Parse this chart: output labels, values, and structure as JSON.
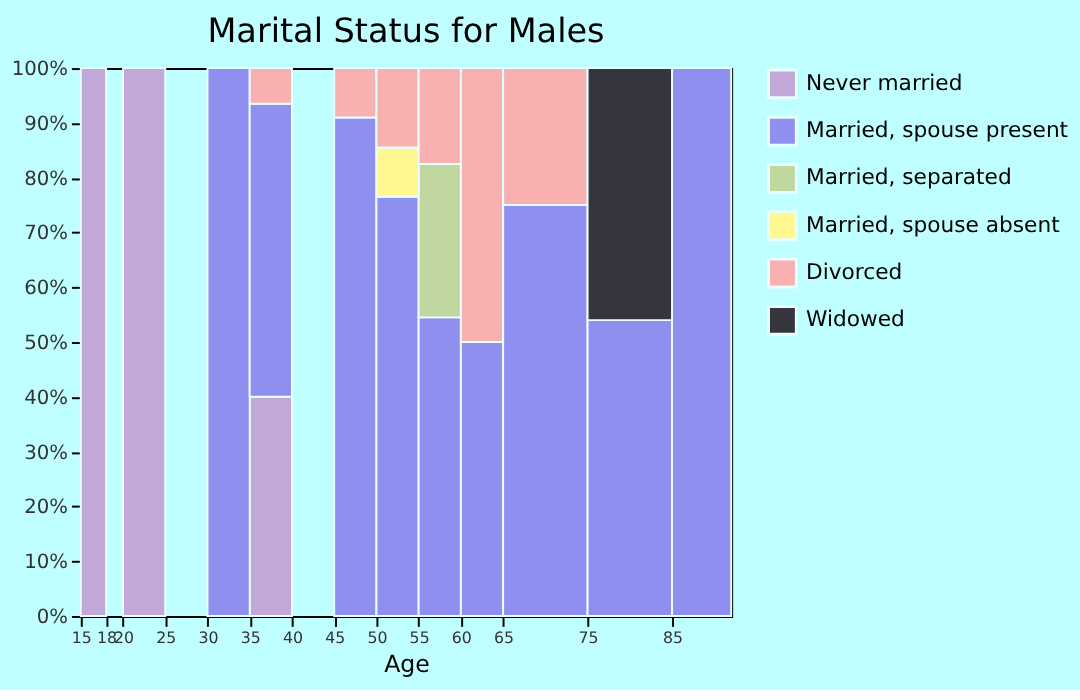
{
  "chart_data": {
    "type": "bar",
    "stacked": true,
    "title": "Marital Status for Males",
    "xlabel": "Age",
    "x": [
      16.5,
      19,
      22.5,
      27.5,
      32.5,
      37.5,
      42.5,
      47.5,
      52.5,
      57.5,
      62.5,
      70,
      80,
      88.5
    ],
    "xlim": [
      15,
      92
    ],
    "xticks": [
      15,
      18,
      20,
      25,
      30,
      35,
      40,
      45,
      50,
      55,
      60,
      65,
      75,
      85
    ],
    "ylim": [
      0,
      100
    ],
    "yticks": [
      {
        "value": 0,
        "label": "0%"
      },
      {
        "value": 10,
        "label": "10%"
      },
      {
        "value": 20,
        "label": "20%"
      },
      {
        "value": 30,
        "label": "30%"
      },
      {
        "value": 40,
        "label": "40%"
      },
      {
        "value": 50,
        "label": "50%"
      },
      {
        "value": 60,
        "label": "60%"
      },
      {
        "value": 70,
        "label": "70%"
      },
      {
        "value": 80,
        "label": "80%"
      },
      {
        "value": 90,
        "label": "90%"
      },
      {
        "value": 100,
        "label": "100%"
      }
    ],
    "series": [
      {
        "name": "Never married",
        "color": "#c0a8d8",
        "values": [
          100,
          null,
          100,
          null,
          null,
          40,
          null,
          null,
          null,
          null,
          null,
          null,
          null,
          null
        ]
      },
      {
        "name": "Married, spouse present",
        "color": "#8f8ff0",
        "values": [
          null,
          null,
          null,
          null,
          100,
          53.5,
          null,
          91,
          76.5,
          54.5,
          50,
          75,
          54,
          100
        ]
      },
      {
        "name": "Married, separated",
        "color": "#c0d8a0",
        "values": [
          null,
          null,
          null,
          null,
          null,
          null,
          null,
          null,
          null,
          28,
          null,
          null,
          null,
          null
        ]
      },
      {
        "name": "Married, spouse absent",
        "color": "#fff890",
        "values": [
          null,
          null,
          null,
          null,
          null,
          null,
          null,
          null,
          9,
          null,
          null,
          null,
          null,
          null
        ]
      },
      {
        "name": "Divorced",
        "color": "#f8b0b0",
        "values": [
          null,
          null,
          null,
          null,
          null,
          6.5,
          null,
          9,
          14.5,
          17.5,
          50,
          25,
          null,
          null
        ]
      },
      {
        "name": "Widowed",
        "color": "#35363d",
        "values": [
          null,
          null,
          null,
          null,
          null,
          null,
          null,
          null,
          null,
          null,
          null,
          null,
          46,
          null
        ]
      }
    ],
    "grid": false,
    "legend": "right"
  }
}
